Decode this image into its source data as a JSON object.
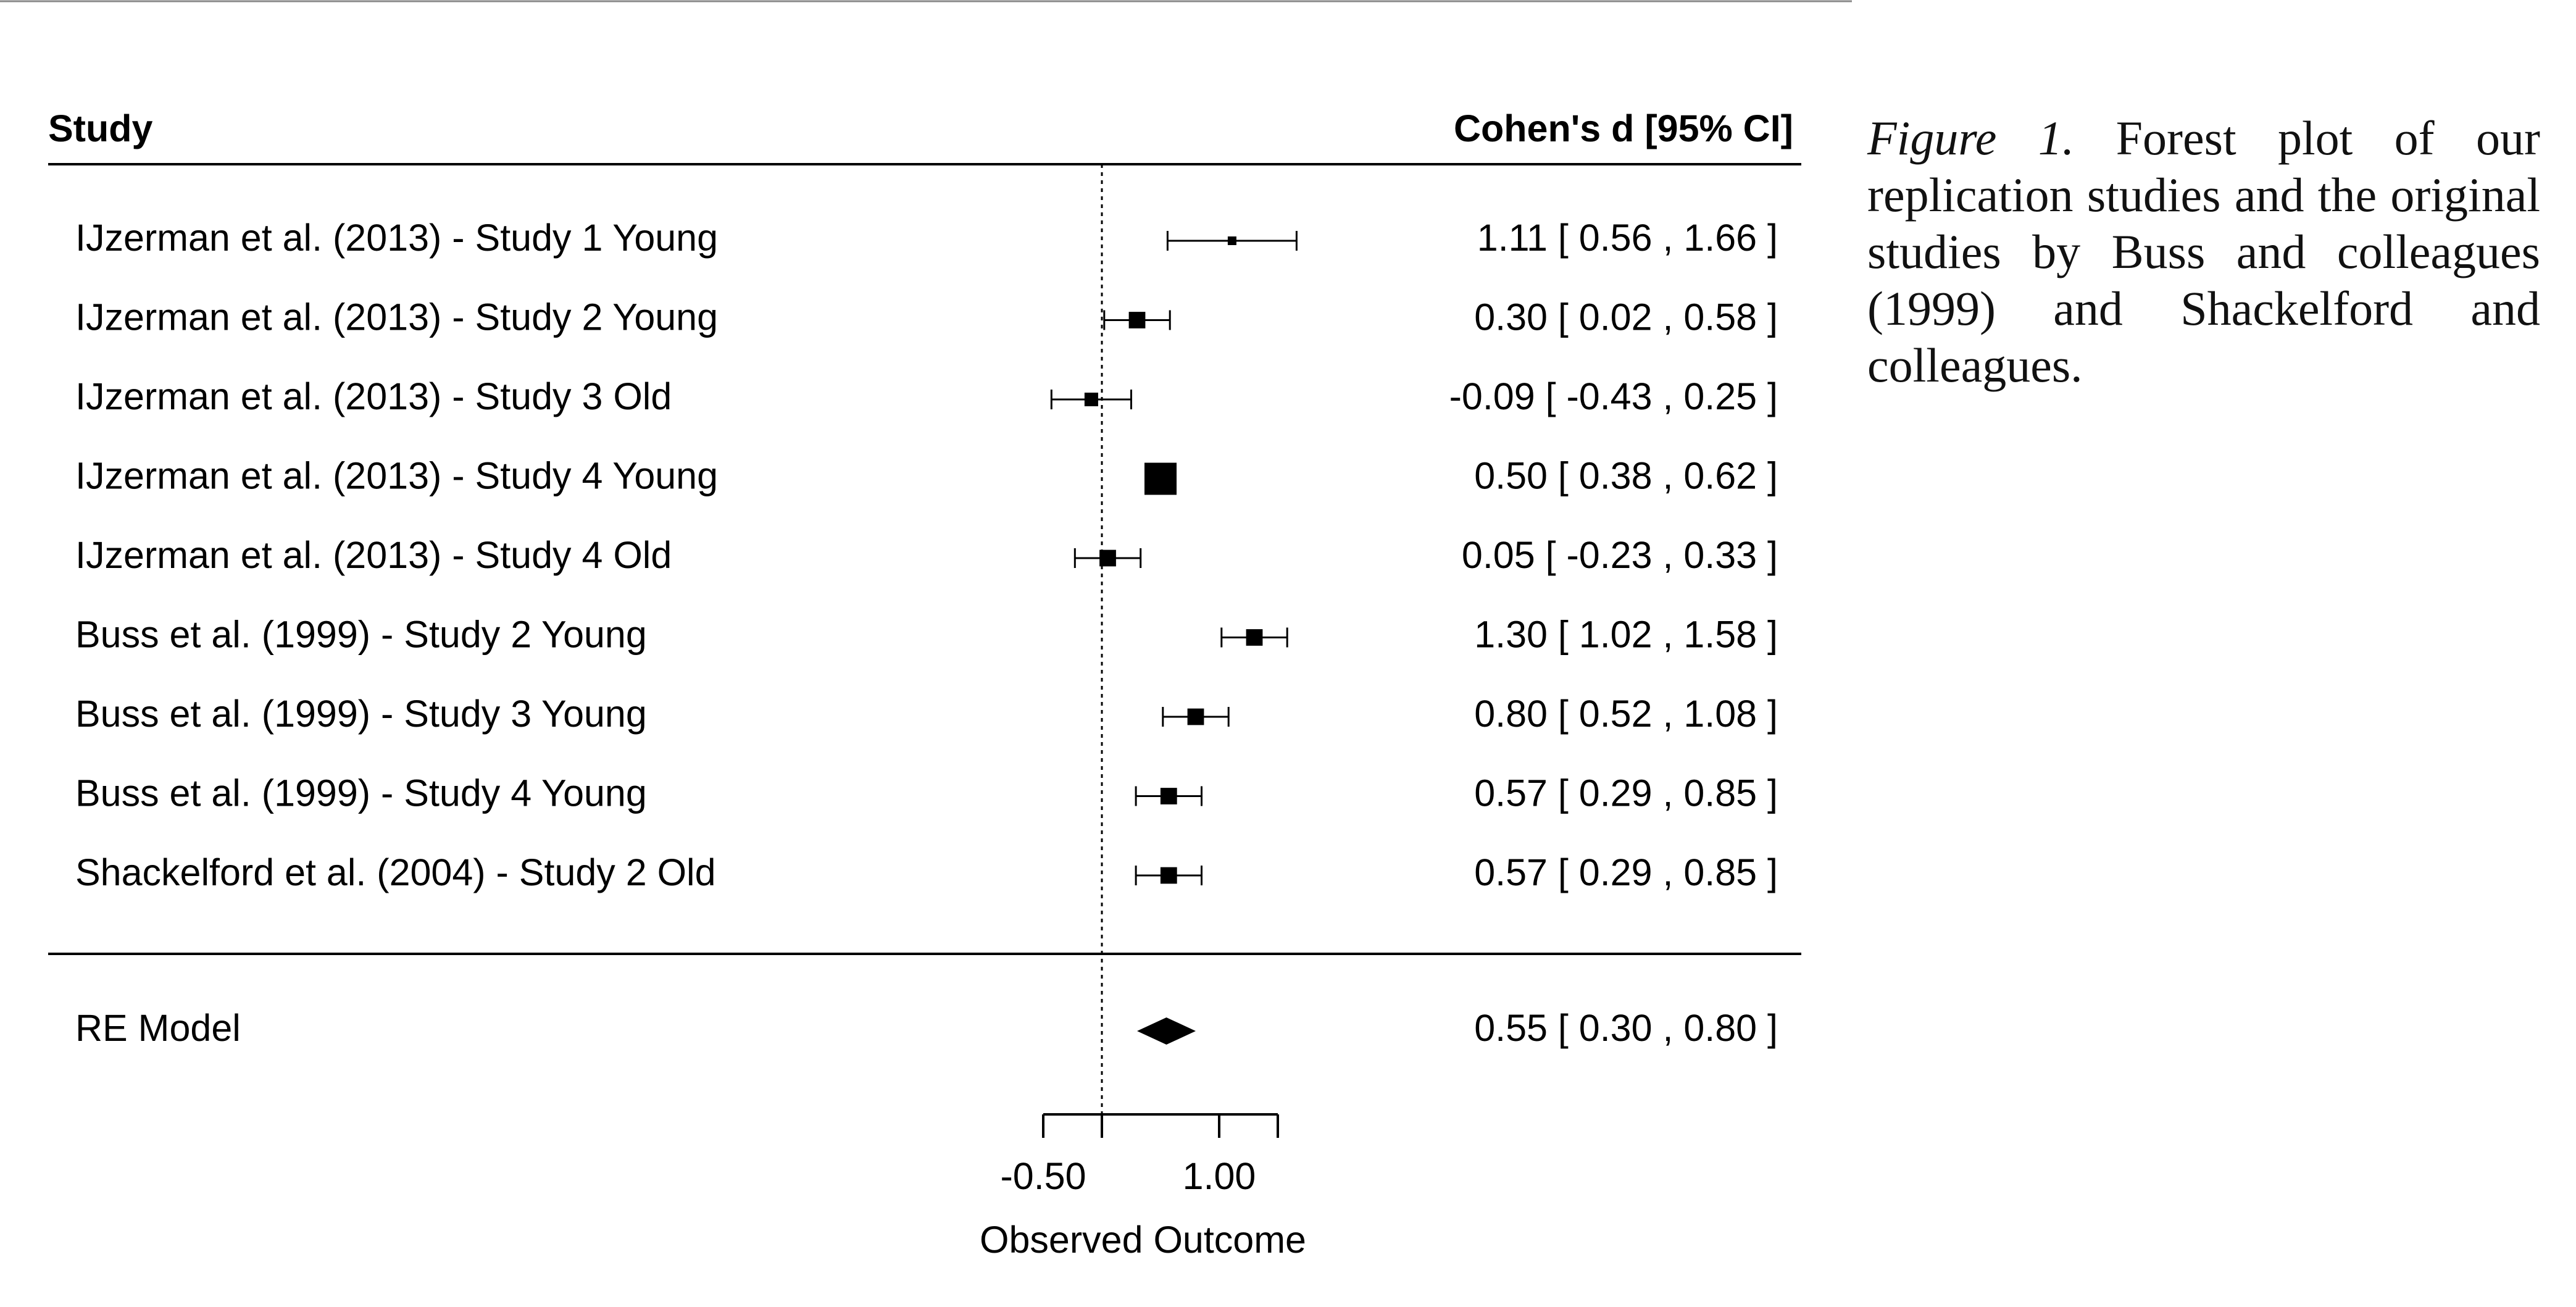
{
  "caption": {
    "label": "Figure 1.",
    "text": "Forest plot of our replication studies and the original studies by Buss and colleagues (1999) and Shackelford and colleagues."
  },
  "chart_data": {
    "type": "forest",
    "header_left": "Study",
    "header_right": "Cohen's d [95% CI]",
    "xlabel": "Observed Outcome",
    "x_ticks": [
      -0.5,
      0.0,
      1.0,
      1.5
    ],
    "x_tick_labels": [
      "-0.50",
      "",
      "1.00",
      ""
    ],
    "reference_line": 0.0,
    "studies": [
      {
        "label": "IJzerman et al. (2013) - Study 1 Young",
        "d": 1.11,
        "lo": 0.56,
        "hi": 1.66,
        "text": "1.11 [  0.56 , 1.66 ]"
      },
      {
        "label": "IJzerman et al. (2013) - Study 2 Young",
        "d": 0.3,
        "lo": 0.02,
        "hi": 0.58,
        "text": "0.30 [  0.02 , 0.58 ]"
      },
      {
        "label": "IJzerman et al. (2013) - Study 3 Old",
        "d": -0.09,
        "lo": -0.43,
        "hi": 0.25,
        "text": "-0.09 [ -0.43 , 0.25 ]"
      },
      {
        "label": "IJzerman et al. (2013) - Study 4 Young",
        "d": 0.5,
        "lo": 0.38,
        "hi": 0.62,
        "text": "0.50 [  0.38 , 0.62 ]"
      },
      {
        "label": "IJzerman et al. (2013) - Study 4 Old",
        "d": 0.05,
        "lo": -0.23,
        "hi": 0.33,
        "text": "0.05 [ -0.23 , 0.33 ]"
      },
      {
        "label": "Buss et al. (1999) - Study 2 Young",
        "d": 1.3,
        "lo": 1.02,
        "hi": 1.58,
        "text": "1.30 [  1.02 , 1.58 ]"
      },
      {
        "label": "Buss et al. (1999) - Study 3 Young",
        "d": 0.8,
        "lo": 0.52,
        "hi": 1.08,
        "text": "0.80 [  0.52 , 1.08 ]"
      },
      {
        "label": "Buss et al. (1999) - Study 4 Young",
        "d": 0.57,
        "lo": 0.29,
        "hi": 0.85,
        "text": "0.57 [  0.29 , 0.85 ]"
      },
      {
        "label": "Shackelford et al. (2004) - Study 2 Old",
        "d": 0.57,
        "lo": 0.29,
        "hi": 0.85,
        "text": "0.57 [  0.29 , 0.85 ]"
      }
    ],
    "summary": {
      "label": "RE Model",
      "d": 0.55,
      "lo": 0.3,
      "hi": 0.8,
      "text": "0.55 [  0.30 , 0.80 ]"
    }
  }
}
